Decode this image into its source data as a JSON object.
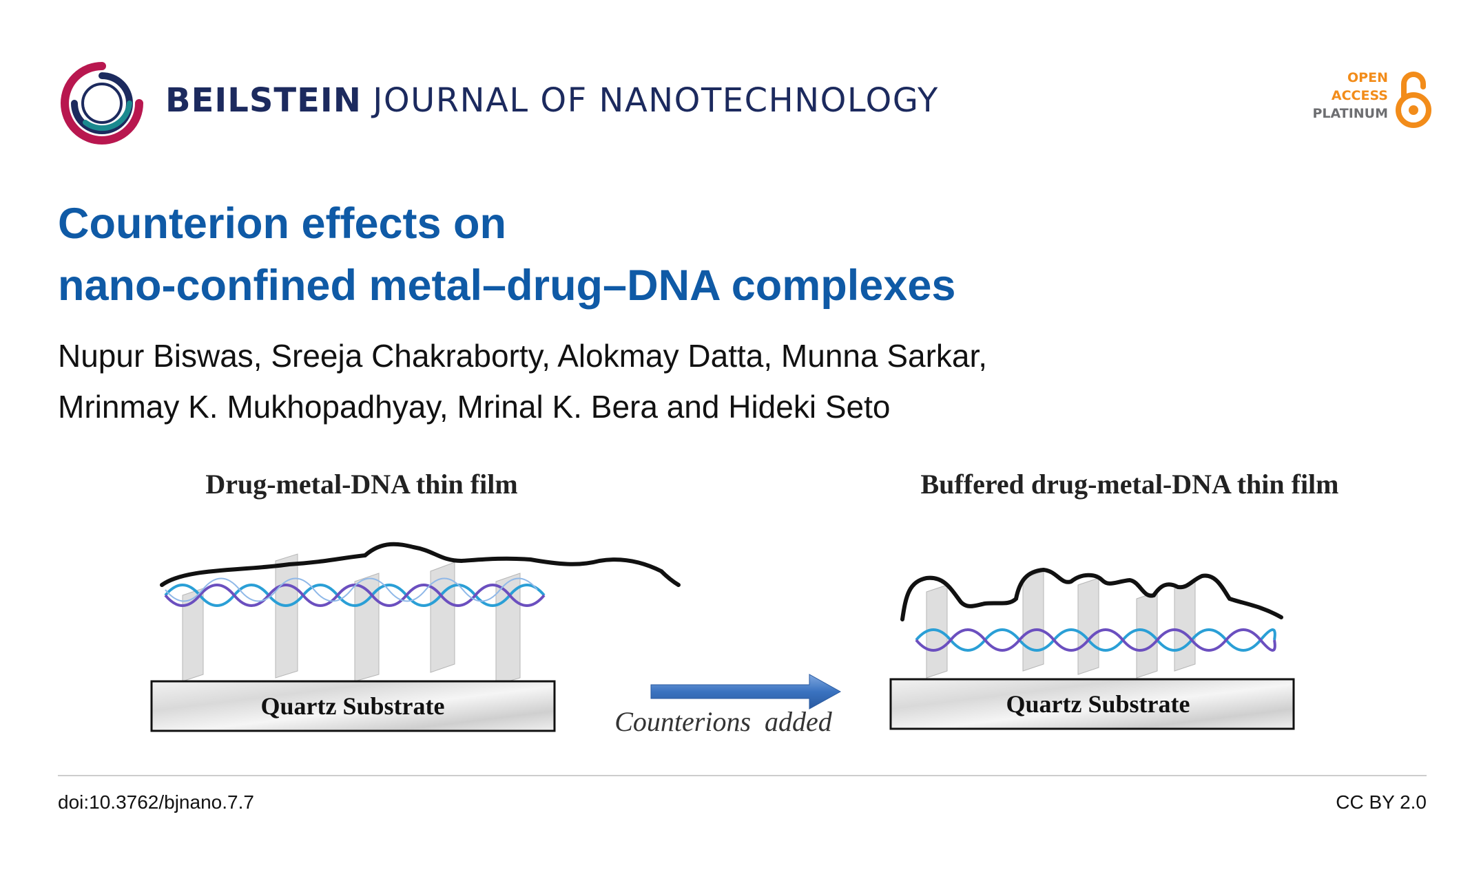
{
  "journal": {
    "name_bold": "BEILSTEIN",
    "name_rest": "JOURNAL OF NANOTECHNOLOGY"
  },
  "badge": {
    "line1": "OPEN",
    "line2": "ACCESS",
    "line3": "PLATINUM"
  },
  "article": {
    "title_line1": "Counterion effects on",
    "title_line2": "nano-confined metal–drug–DNA complexes",
    "authors_line1": "Nupur Biswas, Sreeja Chakraborty, Alokmay Datta, Munna Sarkar,",
    "authors_line2": "Mrinmay K. Mukhopadhyay, Mrinal K. Bera and Hideki Seto"
  },
  "figure": {
    "left_title": "Drug-metal-DNA thin film",
    "right_title": "Buffered drug-metal-DNA thin film",
    "left_substrate": "Quartz Substrate",
    "right_substrate": "Quartz Substrate",
    "arrow_label": "Counterions  added"
  },
  "footer": {
    "doi": "doi:10.3762/bjnano.7.7",
    "license": "CC BY 2.0"
  },
  "colors": {
    "title": "#0f5aa6",
    "journal": "#1c2a5e",
    "oa_orange": "#f28c1a",
    "oa_gray": "#6d6e71",
    "arrow": "#3a73c0"
  }
}
